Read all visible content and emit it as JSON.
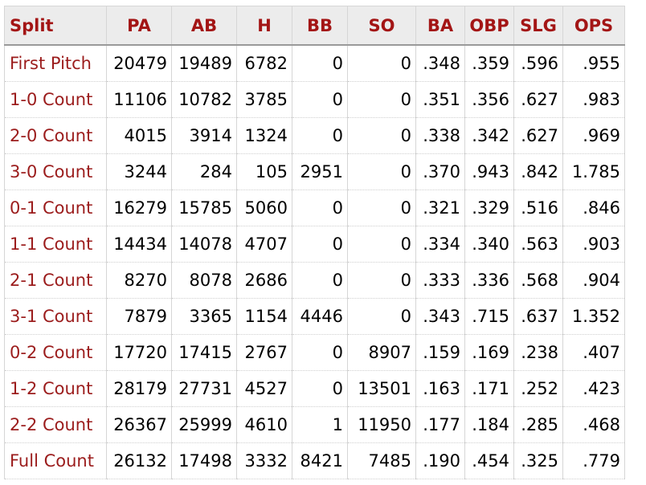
{
  "headers": [
    "Split",
    "PA",
    "AB",
    "H",
    "BB",
    "SO",
    "BA",
    "OBP",
    "SLG",
    "OPS"
  ],
  "rows": [
    [
      "First Pitch",
      "20479",
      "19489",
      "6782",
      "0",
      "0",
      ".348",
      ".359",
      ".596",
      ".955"
    ],
    [
      "1-0 Count",
      "11106",
      "10782",
      "3785",
      "0",
      "0",
      ".351",
      ".356",
      ".627",
      ".983"
    ],
    [
      "2-0 Count",
      "4015",
      "3914",
      "1324",
      "0",
      "0",
      ".338",
      ".342",
      ".627",
      ".969"
    ],
    [
      "3-0 Count",
      "3244",
      "284",
      "105",
      "2951",
      "0",
      ".370",
      ".943",
      ".842",
      "1.785"
    ],
    [
      "0-1 Count",
      "16279",
      "15785",
      "5060",
      "0",
      "0",
      ".321",
      ".329",
      ".516",
      ".846"
    ],
    [
      "1-1 Count",
      "14434",
      "14078",
      "4707",
      "0",
      "0",
      ".334",
      ".340",
      ".563",
      ".903"
    ],
    [
      "2-1 Count",
      "8270",
      "8078",
      "2686",
      "0",
      "0",
      ".333",
      ".336",
      ".568",
      ".904"
    ],
    [
      "3-1 Count",
      "7879",
      "3365",
      "1154",
      "4446",
      "0",
      ".343",
      ".715",
      ".637",
      "1.352"
    ],
    [
      "0-2 Count",
      "17720",
      "17415",
      "2767",
      "0",
      "8907",
      ".159",
      ".169",
      ".238",
      ".407"
    ],
    [
      "1-2 Count",
      "28179",
      "27731",
      "4527",
      "0",
      "13501",
      ".163",
      ".171",
      ".252",
      ".423"
    ],
    [
      "2-2 Count",
      "26367",
      "25999",
      "4610",
      "1",
      "11950",
      ".177",
      ".184",
      ".285",
      ".468"
    ],
    [
      "Full Count",
      "26132",
      "17498",
      "3332",
      "8421",
      "7485",
      ".190",
      ".454",
      ".325",
      ".779"
    ]
  ],
  "colors": {
    "header_text": "#a31515",
    "split_text": "#9b1c1c",
    "header_bg": "#ececec"
  }
}
